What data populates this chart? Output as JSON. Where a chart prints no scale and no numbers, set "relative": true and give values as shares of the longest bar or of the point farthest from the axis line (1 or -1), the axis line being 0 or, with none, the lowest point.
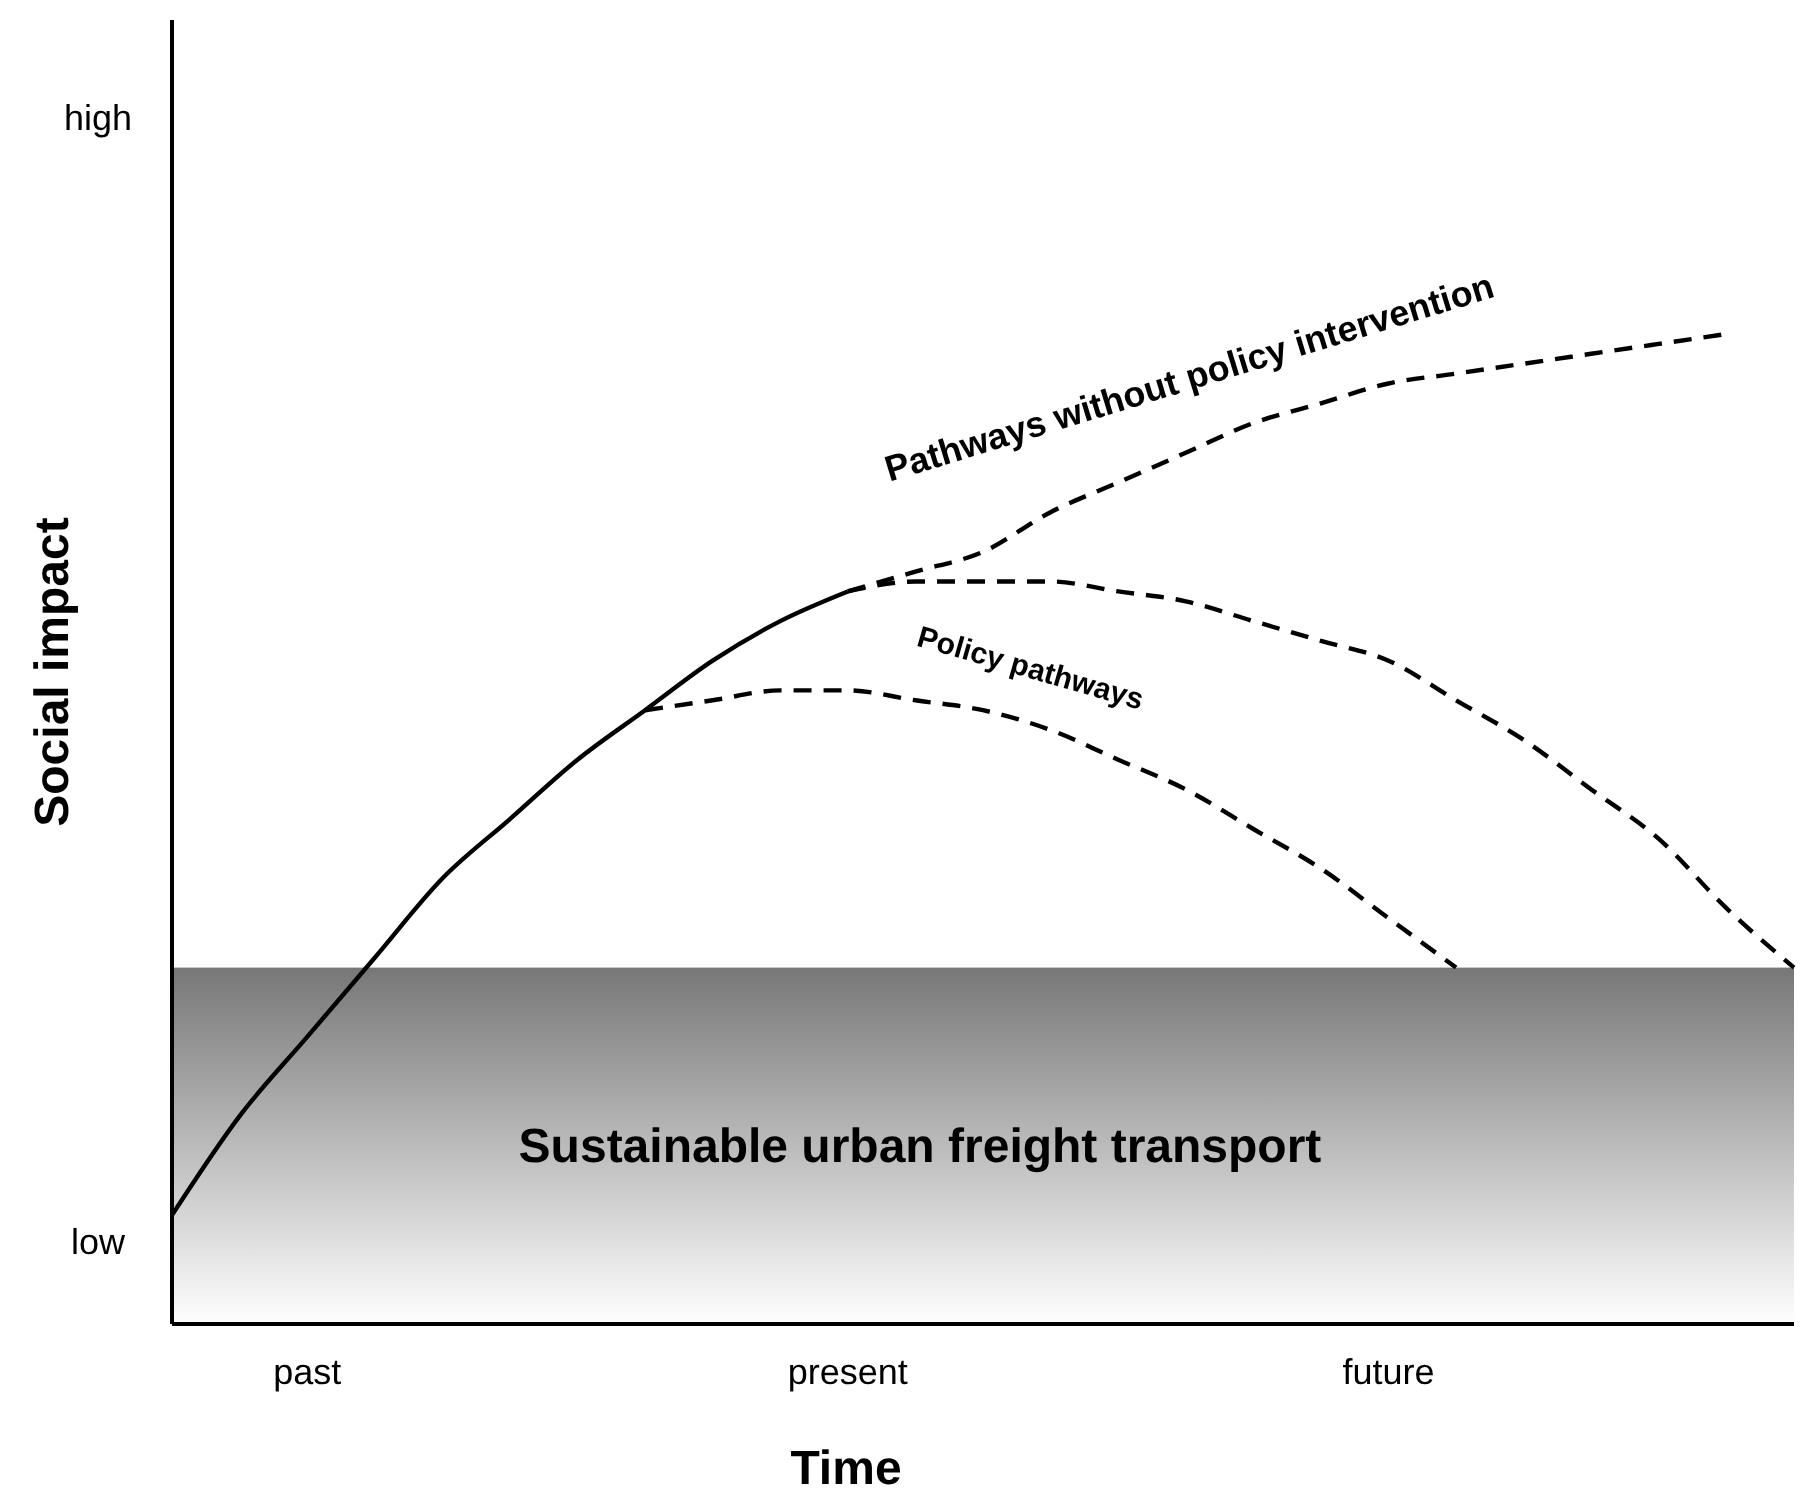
{
  "chart_data": {
    "type": "line",
    "xlabel": "Time",
    "ylabel": "Social impact",
    "relative": true,
    "categories": [
      null,
      null,
      "past",
      null,
      null,
      null,
      null,
      null,
      null,
      null,
      "present",
      null,
      null,
      null,
      null,
      null,
      null,
      null,
      "future",
      null,
      null,
      null,
      null,
      null,
      null
    ],
    "series": [
      {
        "color": "#000000",
        "line_style": "solid",
        "values": [
          0.11,
          0.21,
          0.29,
          0.37,
          0.45,
          0.51,
          0.57,
          0.62,
          0.67,
          0.71,
          0.74,
          null,
          null,
          null,
          null,
          null,
          null,
          null,
          null,
          null,
          null,
          null,
          null,
          null,
          null
        ]
      },
      {
        "color": "#000000",
        "line_style": "dashed",
        "values": [
          null,
          null,
          null,
          null,
          null,
          null,
          null,
          null,
          null,
          null,
          0.74,
          0.76,
          0.78,
          0.82,
          0.85,
          0.88,
          0.91,
          0.93,
          0.95,
          0.96,
          0.97,
          0.98,
          0.99,
          1,
          null
        ]
      },
      {
        "color": "#000000",
        "line_style": "dashed",
        "values": [
          null,
          null,
          null,
          null,
          null,
          null,
          null,
          null,
          null,
          null,
          0.74,
          0.75,
          0.75,
          0.75,
          0.74,
          0.73,
          0.71,
          0.69,
          0.67,
          0.63,
          0.59,
          0.54,
          0.49,
          0.42,
          0.36
        ]
      },
      {
        "color": "#000000",
        "line_style": "dashed",
        "values": [
          null,
          null,
          null,
          null,
          null,
          null,
          null,
          0.62,
          0.63,
          0.64,
          0.64,
          0.63,
          0.62,
          0.6,
          0.57,
          0.54,
          0.5,
          0.46,
          0.41,
          0.36,
          null,
          null,
          null,
          null,
          null
        ]
      }
    ],
    "bands": [
      {
        "axis": "y",
        "from": 0,
        "to": 0.36,
        "label": "Sustainable urban freight transport",
        "color": "#777777"
      }
    ],
    "annotations": [
      "Pathways without policy intervention",
      "Policy pathways",
      "high",
      "low"
    ]
  }
}
